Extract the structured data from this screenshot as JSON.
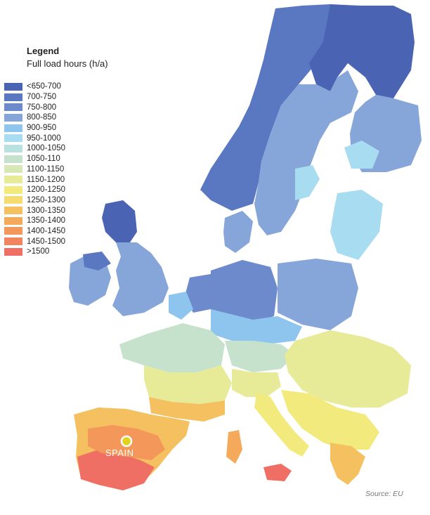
{
  "legend": {
    "title": "Legend",
    "subtitle": "Full load hours (h/a)",
    "items": [
      {
        "label": "<650-700",
        "color": "#4a63b3"
      },
      {
        "label": "700-750",
        "color": "#5a77c1"
      },
      {
        "label": "750-800",
        "color": "#6d8bcc"
      },
      {
        "label": "800-850",
        "color": "#86a6d9"
      },
      {
        "label": "900-950",
        "color": "#8ec5ee"
      },
      {
        "label": "950-1000",
        "color": "#a8dcf0"
      },
      {
        "label": "1000-1050",
        "color": "#b9e1df"
      },
      {
        "label": "1050-110",
        "color": "#c7e2cc"
      },
      {
        "label": "1100-1150",
        "color": "#d8e7b6"
      },
      {
        "label": "1150-1200",
        "color": "#e7eb98"
      },
      {
        "label": "1200-1250",
        "color": "#f2ea7c"
      },
      {
        "label": "1250-1300",
        "color": "#f5dc6f"
      },
      {
        "label": "1300-1350",
        "color": "#f5c160"
      },
      {
        "label": "1350-1400",
        "color": "#f4aa5a"
      },
      {
        "label": "1400-1450",
        "color": "#f3975a"
      },
      {
        "label": "1450-1500",
        "color": "#f38460"
      },
      {
        "label": ">1500",
        "color": "#f06f64"
      }
    ]
  },
  "marker": {
    "label": "SPAIN",
    "color": "#e3d11b"
  },
  "source": "Source: EU"
}
